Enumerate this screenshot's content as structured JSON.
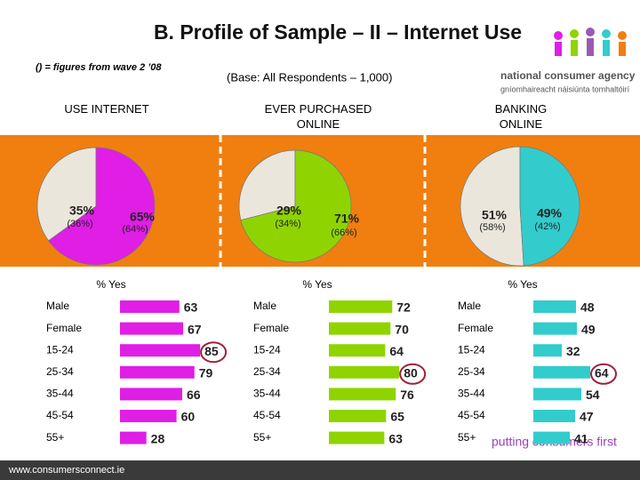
{
  "header": {
    "title": "B. Profile of Sample – II – Internet Use",
    "note": "() = figures from wave 2 ’08",
    "base": "(Base: All Respondents – 1,000)"
  },
  "logo": {
    "name": "national consumer agency",
    "irish": "gníomhaireacht náisiúnta tomhaltóirí"
  },
  "footer": {
    "url": "www.consumersconnect.ie",
    "slogan": "putting consumers first"
  },
  "chart_data": [
    {
      "type": "pie",
      "title": "USE INTERNET",
      "values": [
        35,
        65
      ],
      "value_labels": [
        "35%",
        "65%"
      ],
      "previous_labels": [
        "(36%)",
        "(64%)"
      ],
      "colors": [
        "#ebe6dc",
        "#e01ee6"
      ]
    },
    {
      "type": "pie",
      "title": "EVER PURCHASED ONLINE",
      "values": [
        29,
        71
      ],
      "value_labels": [
        "29%",
        "71%"
      ],
      "previous_labels": [
        "(34%)",
        "(66%)"
      ],
      "colors": [
        "#ebe6dc",
        "#8fd400"
      ]
    },
    {
      "type": "pie",
      "title": "BANKING ONLINE",
      "values": [
        51,
        49
      ],
      "value_labels": [
        "51%",
        "49%"
      ],
      "previous_labels": [
        "(58%)",
        "(42%)"
      ],
      "colors": [
        "#ebe6dc",
        "#33cccc"
      ]
    },
    {
      "type": "bar",
      "title": "% Yes",
      "categories": [
        "Male",
        "Female",
        "15-24",
        "25-34",
        "35-44",
        "45-54",
        "55+"
      ],
      "values": [
        63,
        67,
        85,
        79,
        66,
        60,
        28
      ],
      "color": "#e01ee6",
      "xlim": [
        0,
        100
      ],
      "highlight_index": 2
    },
    {
      "type": "bar",
      "title": "% Yes",
      "categories": [
        "Male",
        "Female",
        "15-24",
        "25-34",
        "35-44",
        "45-54",
        "55+"
      ],
      "values": [
        72,
        70,
        64,
        80,
        76,
        65,
        63
      ],
      "color": "#8fd400",
      "xlim": [
        0,
        100
      ],
      "highlight_index": 3
    },
    {
      "type": "bar",
      "title": "% Yes",
      "categories": [
        "Male",
        "Female",
        "15-24",
        "25-34",
        "35-44",
        "45-54",
        "55+"
      ],
      "values": [
        48,
        49,
        32,
        64,
        54,
        47,
        41
      ],
      "color": "#33cccc",
      "xlim": [
        0,
        100
      ],
      "highlight_index": 3
    }
  ]
}
